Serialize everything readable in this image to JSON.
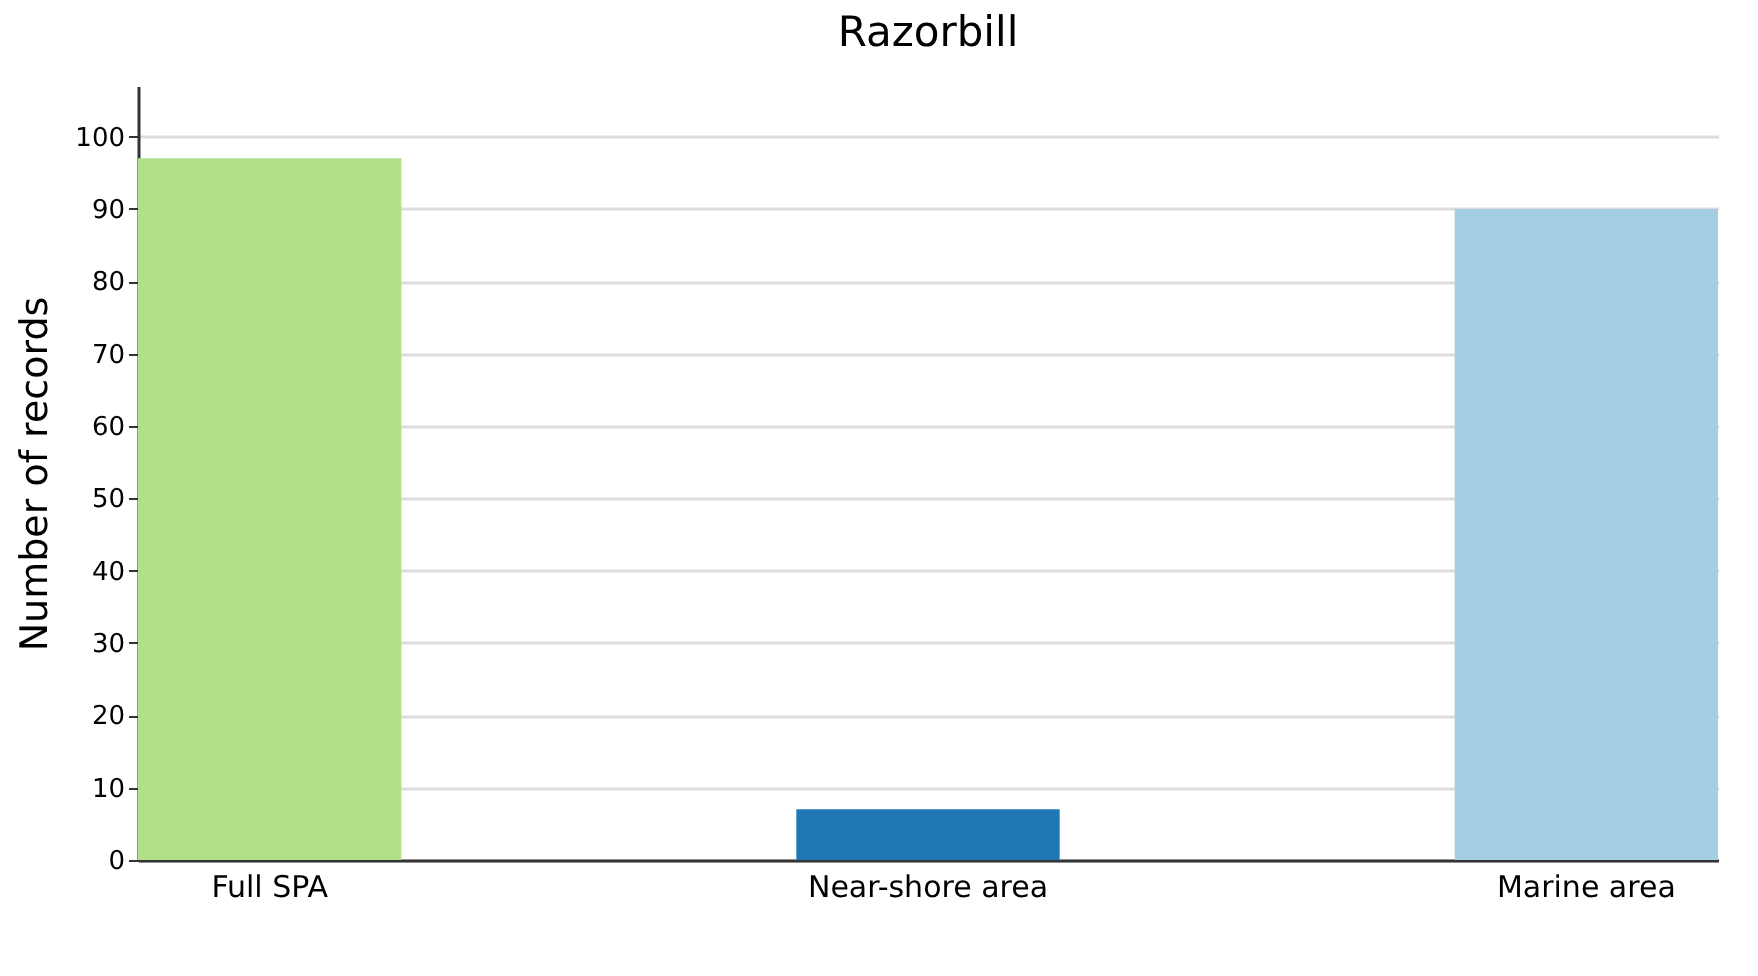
{
  "chart_data": {
    "type": "bar",
    "title": "Razorbill",
    "ylabel": "Number of records",
    "categories": [
      "Full SPA",
      "Near-shore area",
      "Marine area"
    ],
    "values": [
      97,
      7,
      90
    ],
    "colors": [
      "#b2df8a",
      "#1f78b4",
      "#a6cee3"
    ],
    "ylim": [
      0,
      107
    ],
    "yticks": [
      0,
      10,
      20,
      30,
      40,
      50,
      60,
      70,
      80,
      90,
      100
    ],
    "grid": "y"
  }
}
